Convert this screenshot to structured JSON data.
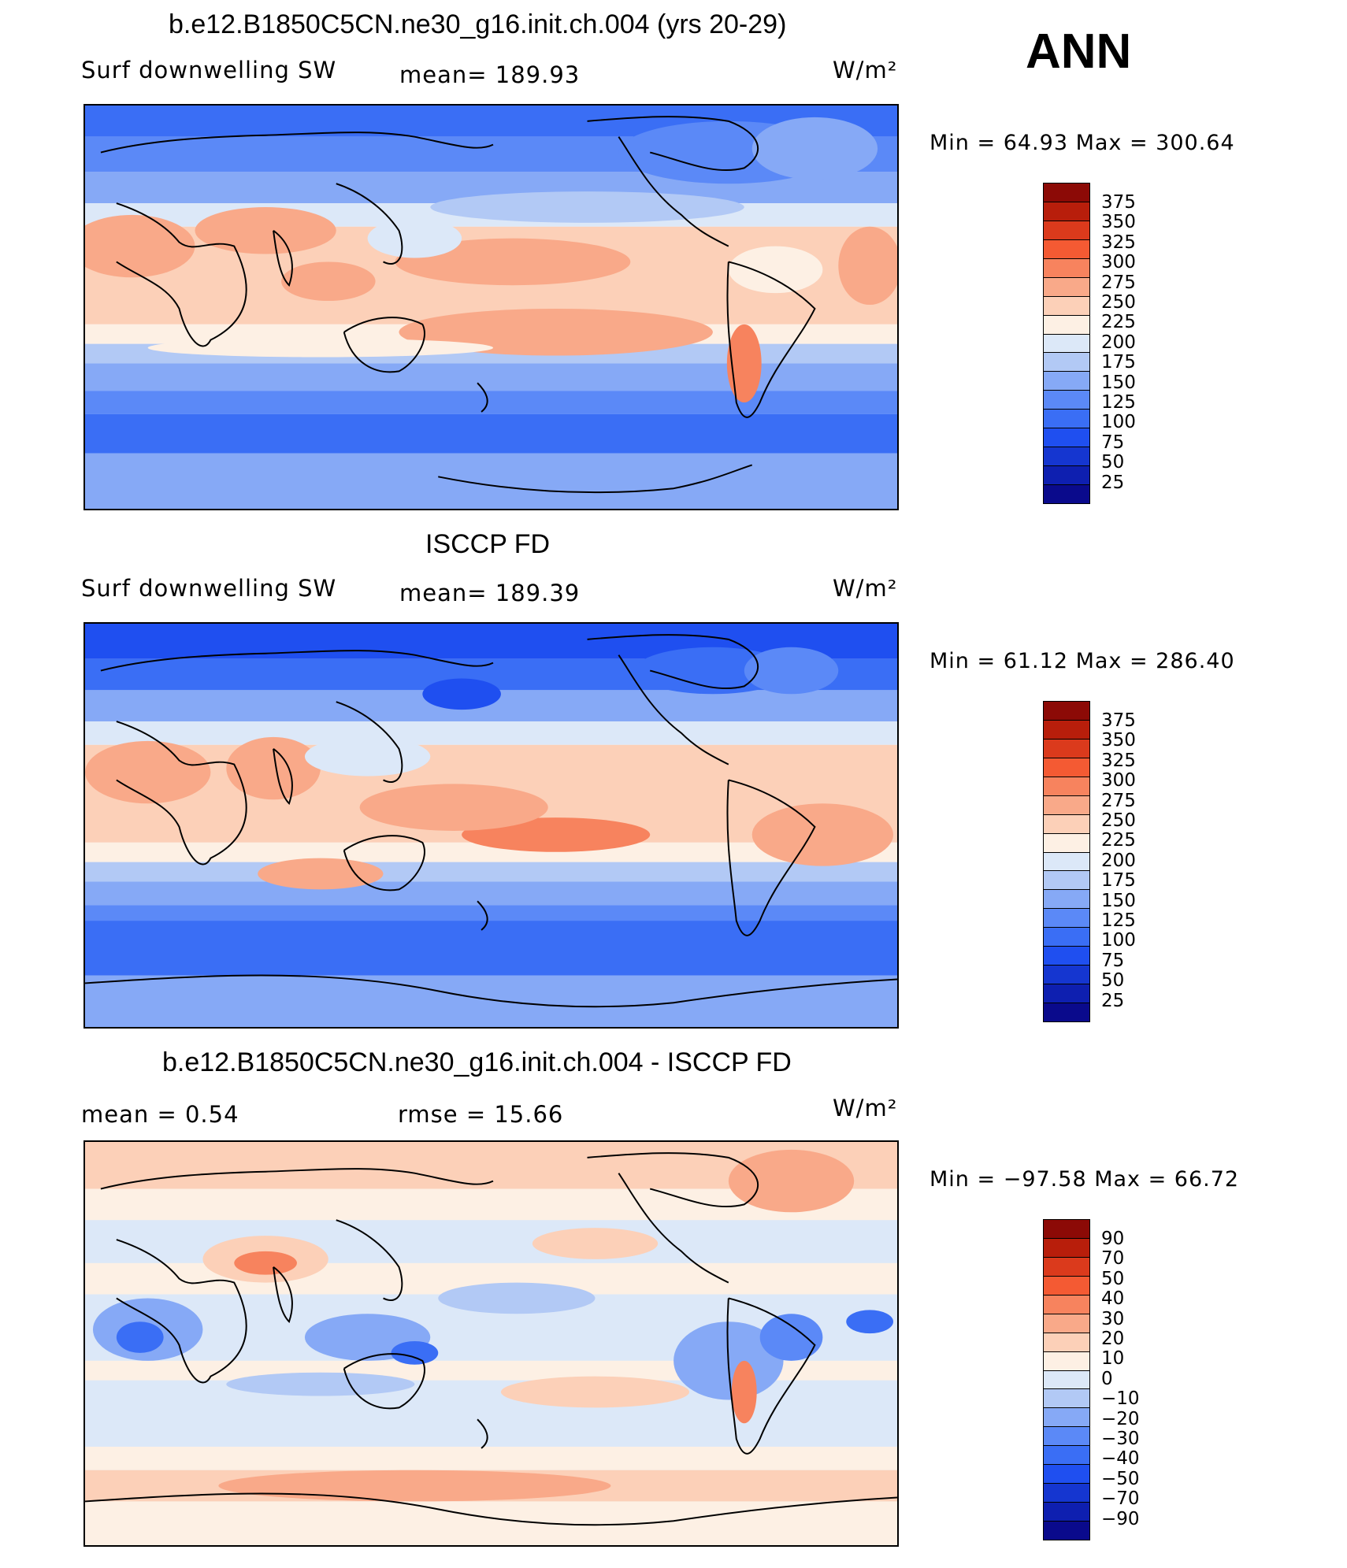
{
  "season": "ANN",
  "palette": [
    "#0a0a8c",
    "#0e1fb0",
    "#1536d0",
    "#1f4ff0",
    "#3a6ef5",
    "#5b89f7",
    "#86a9f6",
    "#b2c9f5",
    "#dce8f8",
    "#fdf0e4",
    "#fcd0b8",
    "#f9a989",
    "#f7835e",
    "#f45a33",
    "#db3a1c",
    "#b81e0b",
    "#8c0a06"
  ],
  "panels": [
    {
      "title": "b.e12.B1850C5CN.ne30_g16.init.ch.004 (yrs 20-29)",
      "left_label": "Surf  downwelling  SW",
      "stat_label": "mean=  189.93",
      "units": "W/m²",
      "minmax": "Min  =    64.93  Max  =  300.64",
      "colorbar_labels": [
        "375",
        "350",
        "325",
        "300",
        "275",
        "250",
        "225",
        "200",
        "175",
        "150",
        "125",
        "100",
        "75",
        "50",
        "25"
      ]
    },
    {
      "title": "ISCCP FD",
      "left_label": "Surf  downwelling  SW",
      "stat_label": "mean=  189.39",
      "units": "W/m²",
      "minmax": "Min  =    61.12  Max  =  286.40",
      "colorbar_labels": [
        "375",
        "350",
        "325",
        "300",
        "275",
        "250",
        "225",
        "200",
        "175",
        "150",
        "125",
        "100",
        "75",
        "50",
        "25"
      ]
    },
    {
      "title": "b.e12.B1850C5CN.ne30_g16.init.ch.004 - ISCCP FD",
      "left_label": "mean  =     0.54",
      "stat_label": "rmse  =    15.66",
      "units": "W/m²",
      "minmax": "Min  =  −97.58  Max  =    66.72",
      "colorbar_labels": [
        "90",
        "70",
        "50",
        "40",
        "30",
        "20",
        "10",
        "0",
        "−10",
        "−20",
        "−30",
        "−40",
        "−50",
        "−70",
        "−90"
      ]
    }
  ]
}
